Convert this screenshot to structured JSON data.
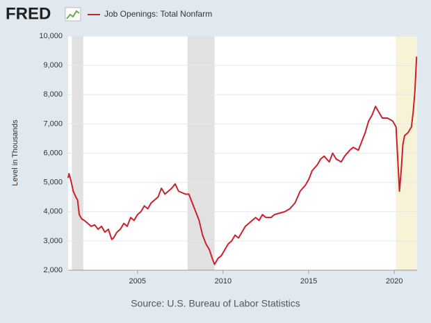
{
  "chart_data": {
    "type": "line",
    "logo": "FRED",
    "ylabel": "Level in Thousands",
    "source": "Source: U.S. Bureau of Labor Statistics",
    "xlim": [
      2000.95,
      2021.33
    ],
    "xticks": [
      2005,
      2010,
      2015,
      2020
    ],
    "ylim": [
      2000,
      10000
    ],
    "yticks": [
      {
        "value": 2000,
        "label": "2,000"
      },
      {
        "value": 3000,
        "label": "3,000"
      },
      {
        "value": 4000,
        "label": "4,000"
      },
      {
        "value": 5000,
        "label": "5,000"
      },
      {
        "value": 6000,
        "label": "6,000"
      },
      {
        "value": 7000,
        "label": "7,000"
      },
      {
        "value": 8000,
        "label": "8,000"
      },
      {
        "value": 9000,
        "label": "9,000"
      },
      {
        "value": 10000,
        "label": "10,000"
      }
    ],
    "grid": true,
    "shaded_periods": [
      [
        2001.17,
        2001.83
      ],
      [
        2007.92,
        2009.5
      ],
      [
        2020.08,
        2021.33
      ]
    ],
    "shade_colors": [
      "#e1e1e1",
      "#e1e1e1",
      "#f6f3d6"
    ],
    "x": [
      2000.95,
      2001.0,
      2001.1,
      2001.25,
      2001.4,
      2001.5,
      2001.6,
      2001.75,
      2001.9,
      2002.1,
      2002.3,
      2002.5,
      2002.7,
      2002.9,
      2003.1,
      2003.3,
      2003.5,
      2003.6,
      2003.8,
      2004.0,
      2004.2,
      2004.4,
      2004.6,
      2004.8,
      2005.0,
      2005.2,
      2005.4,
      2005.6,
      2005.8,
      2006.0,
      2006.2,
      2006.4,
      2006.6,
      2006.8,
      2007.0,
      2007.2,
      2007.4,
      2007.6,
      2007.8,
      2008.0,
      2008.2,
      2008.4,
      2008.6,
      2008.8,
      2009.0,
      2009.2,
      2009.4,
      2009.5,
      2009.7,
      2009.9,
      2010.1,
      2010.3,
      2010.5,
      2010.7,
      2010.9,
      2011.1,
      2011.3,
      2011.5,
      2011.7,
      2011.9,
      2012.1,
      2012.3,
      2012.5,
      2012.8,
      2013.0,
      2013.3,
      2013.6,
      2013.9,
      2014.2,
      2014.5,
      2014.8,
      2015.0,
      2015.2,
      2015.5,
      2015.7,
      2015.9,
      2016.2,
      2016.4,
      2016.6,
      2016.9,
      2017.1,
      2017.4,
      2017.6,
      2017.9,
      2018.1,
      2018.3,
      2018.5,
      2018.7,
      2018.9,
      2019.1,
      2019.3,
      2019.6,
      2019.9,
      2020.0,
      2020.1,
      2020.2,
      2020.3,
      2020.4,
      2020.5,
      2020.6,
      2020.8,
      2021.0,
      2021.1,
      2021.2,
      2021.3
    ],
    "series": [
      {
        "name": "Job Openings: Total Nonfarm",
        "color": "#cc1f2b",
        "values": [
          5150,
          5300,
          5100,
          4700,
          4500,
          4400,
          3900,
          3750,
          3700,
          3600,
          3500,
          3550,
          3400,
          3500,
          3300,
          3400,
          3050,
          3100,
          3300,
          3400,
          3600,
          3500,
          3800,
          3700,
          3900,
          4000,
          4200,
          4100,
          4300,
          4400,
          4500,
          4800,
          4600,
          4700,
          4800,
          4950,
          4700,
          4650,
          4600,
          4600,
          4300,
          4000,
          3700,
          3200,
          2900,
          2700,
          2350,
          2200,
          2400,
          2500,
          2700,
          2900,
          3000,
          3200,
          3100,
          3300,
          3500,
          3600,
          3700,
          3800,
          3700,
          3900,
          3800,
          3800,
          3900,
          3950,
          4000,
          4100,
          4300,
          4700,
          4900,
          5100,
          5400,
          5600,
          5800,
          5900,
          5700,
          6000,
          5800,
          5700,
          5900,
          6100,
          6200,
          6100,
          6400,
          6700,
          7100,
          7300,
          7600,
          7400,
          7200,
          7200,
          7100,
          7000,
          6900,
          5800,
          4700,
          5400,
          6300,
          6600,
          6700,
          6900,
          7400,
          8100,
          9300
        ]
      }
    ]
  }
}
